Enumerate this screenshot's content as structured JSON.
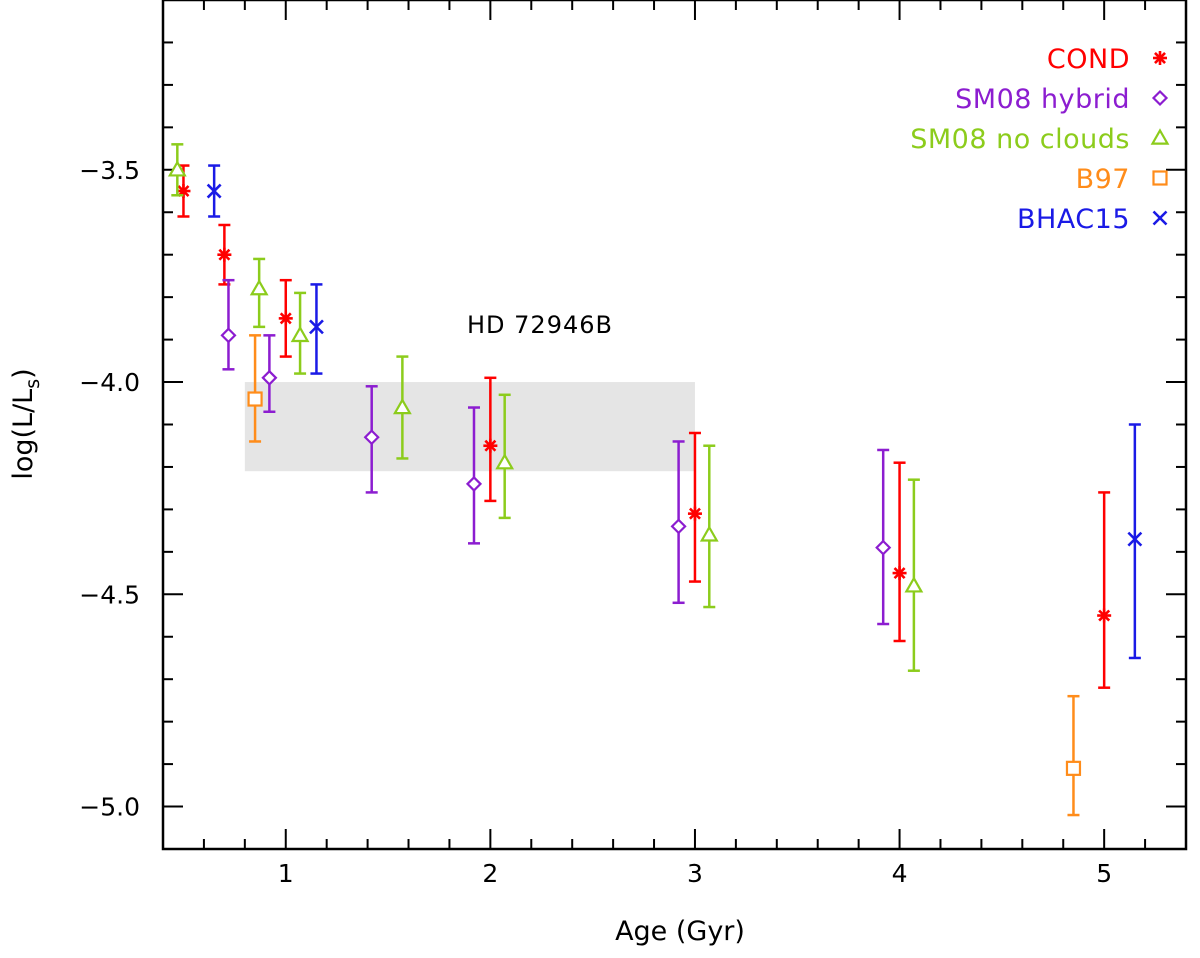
{
  "chart_data": {
    "type": "scatter",
    "title": "",
    "xlabel": "Age (Gyr)",
    "ylabel": "log(L/L",
    "ylabel_sub": "s",
    "ylabel_close": ")",
    "xlim": [
      0.4,
      5.4
    ],
    "ylim": [
      -5.1,
      -3.1
    ],
    "x_major_ticks": [
      1,
      2,
      3,
      4,
      5
    ],
    "x_minor_step": 0.2,
    "y_major_ticks": [
      -5.0,
      -4.5,
      -4.0,
      -3.5
    ],
    "y_minor_step": 0.1,
    "x_tick_labels": [
      "1",
      "2",
      "3",
      "4",
      "5"
    ],
    "y_tick_labels": [
      "−5.0",
      "−4.5",
      "−4.0",
      "−3.5"
    ],
    "grid": false,
    "legend_position": "top-right",
    "annotation": "HD 72946B",
    "shaded_region": {
      "x": [
        0.8,
        3.0
      ],
      "y": [
        -4.21,
        -4.0
      ],
      "color": "#e5e5e5"
    },
    "series": [
      {
        "name": "COND",
        "marker": "asterisk",
        "color": "#ff0000",
        "points": [
          {
            "x": 0.5,
            "y": -3.55,
            "ylow": -3.61,
            "yhigh": -3.49
          },
          {
            "x": 0.7,
            "y": -3.7,
            "ylow": -3.77,
            "yhigh": -3.63
          },
          {
            "x": 1.0,
            "y": -3.85,
            "ylow": -3.94,
            "yhigh": -3.76
          },
          {
            "x": 2.0,
            "y": -4.15,
            "ylow": -4.28,
            "yhigh": -3.99
          },
          {
            "x": 3.0,
            "y": -4.31,
            "ylow": -4.47,
            "yhigh": -4.12
          },
          {
            "x": 4.0,
            "y": -4.45,
            "ylow": -4.61,
            "yhigh": -4.19
          },
          {
            "x": 5.0,
            "y": -4.55,
            "ylow": -4.72,
            "yhigh": -4.26
          }
        ]
      },
      {
        "name": "SM08 hybrid",
        "marker": "diamond",
        "color": "#8c1dd0",
        "points": [
          {
            "x": 0.72,
            "y": -3.89,
            "ylow": -3.97,
            "yhigh": -3.76
          },
          {
            "x": 0.92,
            "y": -3.99,
            "ylow": -4.07,
            "yhigh": -3.89
          },
          {
            "x": 1.42,
            "y": -4.13,
            "ylow": -4.26,
            "yhigh": -4.01
          },
          {
            "x": 1.92,
            "y": -4.24,
            "ylow": -4.38,
            "yhigh": -4.06
          },
          {
            "x": 2.92,
            "y": -4.34,
            "ylow": -4.52,
            "yhigh": -4.14
          },
          {
            "x": 3.92,
            "y": -4.39,
            "ylow": -4.57,
            "yhigh": -4.16
          }
        ]
      },
      {
        "name": "SM08 no clouds",
        "marker": "triangle",
        "color": "#8ccc1c",
        "points": [
          {
            "x": 0.47,
            "y": -3.5,
            "ylow": -3.56,
            "yhigh": -3.44
          },
          {
            "x": 0.87,
            "y": -3.78,
            "ylow": -3.87,
            "yhigh": -3.71
          },
          {
            "x": 1.07,
            "y": -3.89,
            "ylow": -3.98,
            "yhigh": -3.79
          },
          {
            "x": 1.57,
            "y": -4.06,
            "ylow": -4.18,
            "yhigh": -3.94
          },
          {
            "x": 2.07,
            "y": -4.19,
            "ylow": -4.32,
            "yhigh": -4.03
          },
          {
            "x": 3.07,
            "y": -4.36,
            "ylow": -4.53,
            "yhigh": -4.15
          },
          {
            "x": 4.07,
            "y": -4.48,
            "ylow": -4.68,
            "yhigh": -4.23
          }
        ]
      },
      {
        "name": "B97",
        "marker": "square",
        "color": "#ff8c1a",
        "points": [
          {
            "x": 0.85,
            "y": -4.04,
            "ylow": -4.14,
            "yhigh": -3.89
          },
          {
            "x": 4.85,
            "y": -4.91,
            "ylow": -5.02,
            "yhigh": -4.74
          }
        ]
      },
      {
        "name": "BHAC15",
        "marker": "x",
        "color": "#1a1ae6",
        "points": [
          {
            "x": 0.65,
            "y": -3.55,
            "ylow": -3.61,
            "yhigh": -3.49
          },
          {
            "x": 1.15,
            "y": -3.87,
            "ylow": -3.98,
            "yhigh": -3.77
          },
          {
            "x": 5.15,
            "y": -4.37,
            "ylow": -4.65,
            "yhigh": -4.1
          }
        ]
      }
    ]
  }
}
